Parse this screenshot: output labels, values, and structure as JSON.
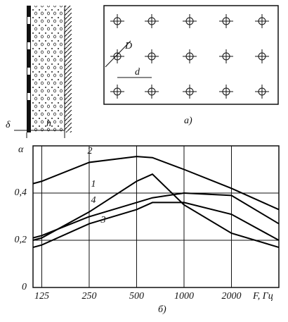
{
  "diagram": {
    "delta": "δ",
    "h": "h",
    "D": "D",
    "d": "d",
    "caption": "а)"
  },
  "chart_data": {
    "type": "line",
    "caption": "б)",
    "y_label": "α",
    "x_label": "F, Гц",
    "x": [
      110,
      125,
      250,
      500,
      630,
      1000,
      2000,
      4000
    ],
    "series": [
      {
        "name": "2",
        "color": "#000000",
        "values": [
          0.44,
          0.45,
          0.53,
          0.555,
          0.55,
          0.5,
          0.42,
          0.33
        ]
      },
      {
        "name": "1",
        "color": "#000000",
        "values": [
          0.2,
          0.21,
          0.32,
          0.45,
          0.48,
          0.35,
          0.23,
          0.17
        ]
      },
      {
        "name": "4",
        "color": "#000000",
        "values": [
          0.21,
          0.22,
          0.3,
          0.36,
          0.38,
          0.4,
          0.39,
          0.27
        ]
      },
      {
        "name": "3",
        "color": "#000000",
        "values": [
          0.17,
          0.18,
          0.27,
          0.33,
          0.36,
          0.36,
          0.31,
          0.2
        ]
      }
    ],
    "xscale": "log",
    "xlim": [
      110,
      4000
    ],
    "xticks": [
      125,
      250,
      500,
      1000,
      2000
    ],
    "ylim": [
      0,
      0.6
    ],
    "yticks": [
      0,
      {
        "value": 0.2,
        "label": "0,2"
      },
      {
        "value": 0.4,
        "label": "0,4"
      }
    ],
    "grid": true
  }
}
